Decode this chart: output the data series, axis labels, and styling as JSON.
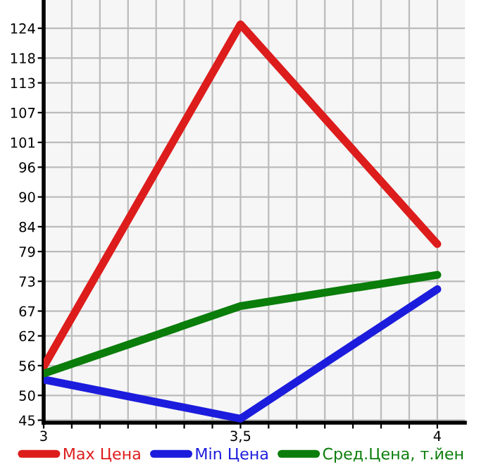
{
  "chart_data": {
    "type": "line",
    "x": [
      3,
      3.5,
      4
    ],
    "series": [
      {
        "name": "Max Цена",
        "color": "#dd1c1c",
        "values": [
          55.8,
          124.8,
          80.5
        ]
      },
      {
        "name": "Min Цена",
        "color": "#1c1cdd",
        "values": [
          53.2,
          45.3,
          71.4
        ]
      },
      {
        "name": "Сред.Цена, т.йен",
        "color": "#0a7d0a",
        "values": [
          54.4,
          68.0,
          74.3
        ]
      }
    ],
    "xlim": [
      3,
      4.07
    ],
    "xticks": [
      {
        "value": 3,
        "label": "3"
      },
      {
        "value": 3.0714,
        "label": null
      },
      {
        "value": 3.1429,
        "label": null
      },
      {
        "value": 3.2143,
        "label": null
      },
      {
        "value": 3.2857,
        "label": null
      },
      {
        "value": 3.3571,
        "label": null
      },
      {
        "value": 3.4286,
        "label": null
      },
      {
        "value": 3.5,
        "label": "3,5"
      },
      {
        "value": 3.5714,
        "label": null
      },
      {
        "value": 3.6429,
        "label": null
      },
      {
        "value": 3.7143,
        "label": null
      },
      {
        "value": 3.7857,
        "label": null
      },
      {
        "value": 3.8571,
        "label": null
      },
      {
        "value": 3.9286,
        "label": null
      },
      {
        "value": 4,
        "label": "4"
      }
    ],
    "ylim": [
      44.5,
      129.7
    ],
    "yticks": [
      45,
      50,
      56,
      62,
      67,
      73,
      79,
      84,
      90,
      96,
      101,
      107,
      113,
      118,
      124
    ],
    "grid": true,
    "legend": "bottom",
    "marker": "none",
    "line_style": "solid"
  }
}
